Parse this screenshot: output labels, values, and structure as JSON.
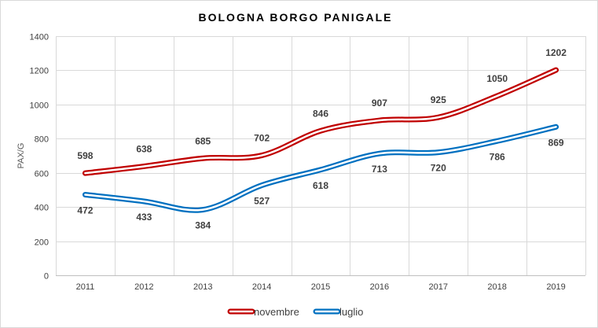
{
  "chart_data": {
    "type": "line",
    "title": "BOLOGNA BORGO PANIGALE",
    "xlabel": "",
    "ylabel": "PAX/G",
    "categories": [
      "2011",
      "2012",
      "2013",
      "2014",
      "2015",
      "2016",
      "2017",
      "2018",
      "2019"
    ],
    "ylim": [
      0,
      1400
    ],
    "yticks": [
      0,
      200,
      400,
      600,
      800,
      1000,
      1200,
      1400
    ],
    "grid": true,
    "legend_position": "bottom",
    "series": [
      {
        "name": "novembre",
        "color": "#c00000",
        "values": [
          598,
          638,
          685,
          702,
          846,
          907,
          925,
          1050,
          1202
        ],
        "labels": [
          "598",
          "638",
          "685",
          "702",
          "846",
          "907",
          "925",
          "1050",
          "1202"
        ],
        "label_side": "above"
      },
      {
        "name": "luglio",
        "color": "#0070c0",
        "values": [
          472,
          433,
          384,
          527,
          618,
          713,
          720,
          786,
          869
        ],
        "labels": [
          "472",
          "433",
          "384",
          "527",
          "618",
          "713",
          "720",
          "786",
          "869"
        ],
        "label_side": "below"
      }
    ]
  }
}
